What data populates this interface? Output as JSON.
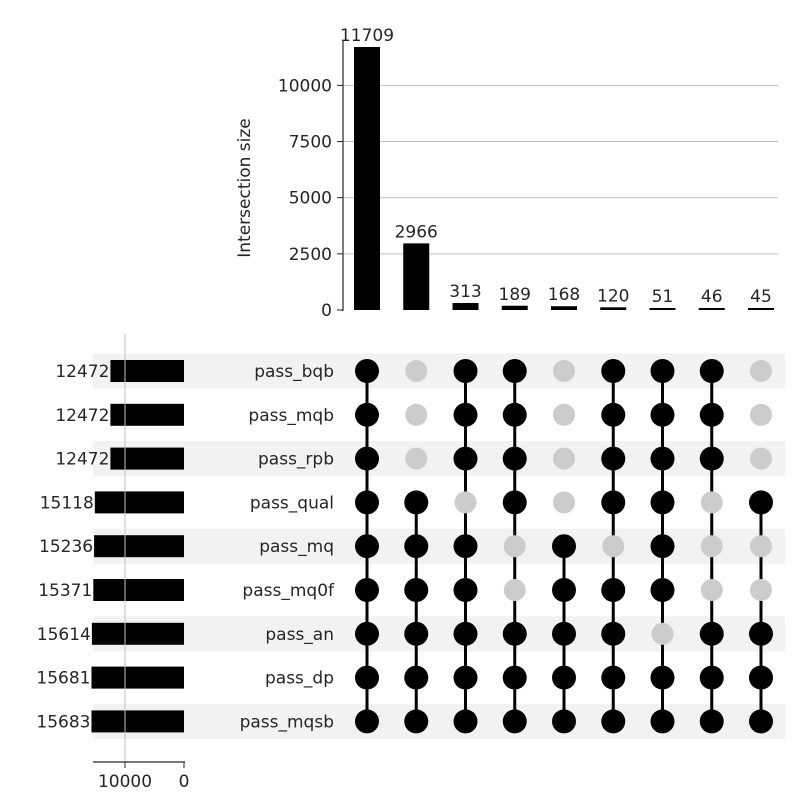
{
  "chart_data": {
    "type": "bar",
    "ylabel": "Intersection size",
    "ylim": [
      0,
      11709
    ],
    "yticks": [
      0,
      2500,
      5000,
      7500,
      10000
    ],
    "grid": true,
    "intersections": [
      {
        "label": "11709",
        "value": 11709
      },
      {
        "label": "2966",
        "value": 2966
      },
      {
        "label": "313",
        "value": 313
      },
      {
        "label": "189",
        "value": 189
      },
      {
        "label": "168",
        "value": 168
      },
      {
        "label": "120",
        "value": 120
      },
      {
        "label": "51",
        "value": 51
      },
      {
        "label": "46",
        "value": 46
      },
      {
        "label": "45",
        "value": 45
      }
    ],
    "sets": [
      {
        "name": "pass_bqb",
        "size": 12472,
        "size_label": "12472"
      },
      {
        "name": "pass_mqb",
        "size": 12472,
        "size_label": "12472"
      },
      {
        "name": "pass_rpb",
        "size": 12472,
        "size_label": "12472"
      },
      {
        "name": "pass_qual",
        "size": 15118,
        "size_label": "15118"
      },
      {
        "name": "pass_mq",
        "size": 15236,
        "size_label": "15236"
      },
      {
        "name": "pass_mq0f",
        "size": 15371,
        "size_label": "15371"
      },
      {
        "name": "pass_an",
        "size": 15614,
        "size_label": "15614"
      },
      {
        "name": "pass_dp",
        "size": 15681,
        "size_label": "15681"
      },
      {
        "name": "pass_mqsb",
        "size": 15683,
        "size_label": "15683"
      }
    ],
    "membership": [
      [
        1,
        1,
        1,
        1,
        1,
        1,
        1,
        1,
        1
      ],
      [
        0,
        0,
        0,
        1,
        1,
        1,
        1,
        1,
        1
      ],
      [
        1,
        1,
        1,
        0,
        1,
        1,
        1,
        1,
        1
      ],
      [
        1,
        1,
        1,
        1,
        0,
        0,
        1,
        1,
        1
      ],
      [
        0,
        0,
        0,
        0,
        1,
        1,
        1,
        1,
        1
      ],
      [
        1,
        1,
        1,
        1,
        0,
        1,
        1,
        1,
        1
      ],
      [
        1,
        1,
        1,
        1,
        1,
        1,
        0,
        1,
        1
      ],
      [
        1,
        1,
        1,
        0,
        0,
        0,
        1,
        1,
        1
      ],
      [
        0,
        0,
        0,
        1,
        0,
        0,
        1,
        1,
        1
      ]
    ],
    "set_size_axis": {
      "ticks": [
        10000,
        0
      ],
      "tick_labels": [
        "10000",
        "0"
      ]
    },
    "colors": {
      "bar": "#000000",
      "dot_active": "#000000",
      "dot_inactive": "#cccccc",
      "row_shade": "#f2f2f2",
      "grid": "#c0c0c0"
    }
  }
}
